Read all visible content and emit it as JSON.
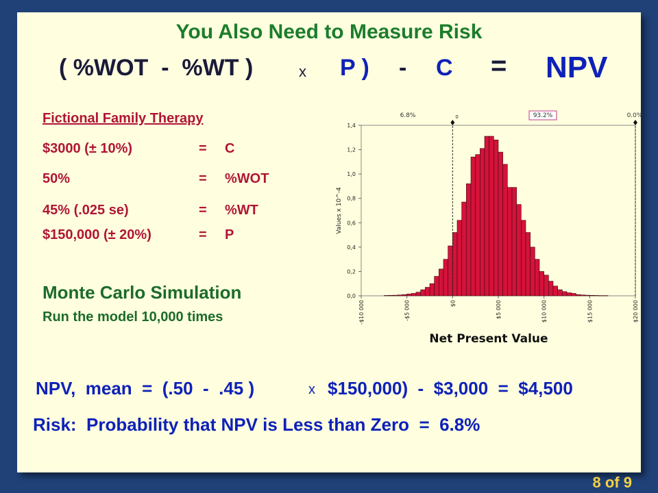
{
  "title": "You Also Need to Measure Risk",
  "formula": {
    "open": "( %WOT  -  %WT )",
    "times": "x",
    "p": "P )",
    "minus": "-",
    "c": "C",
    "equals": "=",
    "npv": "NPV"
  },
  "example": {
    "heading": "Fictional Family Therapy",
    "rows": [
      {
        "value": "$3000 (± 10%)",
        "eq": "=",
        "var": "C"
      },
      {
        "value": "50%",
        "eq": "=",
        "var": "%WOT"
      },
      {
        "value": "45% (.025 se)",
        "eq": "=",
        "var": "%WT"
      },
      {
        "value": "$150,000 (± 20%)",
        "eq": "=",
        "var": "P"
      }
    ]
  },
  "simulation": {
    "heading": "Monte Carlo Simulation",
    "sub": "Run the model 10,000 times"
  },
  "npv_mean": {
    "a": "NPV,  mean  =  (.50  -  .45 )",
    "x": "x",
    "b": "$150,000)  -  $3,000  =  $4,500"
  },
  "risk": "Risk:  Probability that NPV is Less than Zero  =  6.8%",
  "page": "8 of 9",
  "chart_data": {
    "type": "bar",
    "xlabel": "Net Present Value",
    "ylabel": "Values x 10^-4",
    "xlim": [
      -10000,
      20000
    ],
    "ylim": [
      0,
      1.4
    ],
    "x_ticks": [
      "-$10 000",
      "-$5 000",
      "$0",
      "$5 000",
      "$10 000",
      "$15 000",
      "$20 000"
    ],
    "y_ticks": [
      "0,0",
      "0,2",
      "0,4",
      "0,6",
      "0,8",
      "1,0",
      "1,2",
      "1,4"
    ],
    "bin_width": 500,
    "bin_starts": [
      -7500,
      -7000,
      -6500,
      -6000,
      -5500,
      -5000,
      -4500,
      -4000,
      -3500,
      -3000,
      -2500,
      -2000,
      -1500,
      -1000,
      -500,
      0,
      500,
      1000,
      1500,
      2000,
      2500,
      3000,
      3500,
      4000,
      4500,
      5000,
      5500,
      6000,
      6500,
      7000,
      7500,
      8000,
      8500,
      9000,
      9500,
      10000,
      10500,
      11000,
      11500,
      12000,
      12500,
      13000,
      13500,
      14000,
      14500,
      15000,
      15500,
      16000,
      16500
    ],
    "values": [
      0.003,
      0.004,
      0.005,
      0.007,
      0.01,
      0.015,
      0.02,
      0.03,
      0.05,
      0.07,
      0.1,
      0.16,
      0.22,
      0.3,
      0.41,
      0.52,
      0.62,
      0.77,
      0.92,
      1.14,
      1.16,
      1.21,
      1.31,
      1.31,
      1.28,
      1.18,
      1.08,
      0.89,
      0.89,
      0.75,
      0.62,
      0.52,
      0.4,
      0.3,
      0.2,
      0.17,
      0.12,
      0.08,
      0.05,
      0.035,
      0.025,
      0.02,
      0.01,
      0.007,
      0.005,
      0.004,
      0.003,
      0.002,
      0.002
    ],
    "markers": [
      {
        "x": 0,
        "label": "0"
      },
      {
        "x": 20000,
        "label": ""
      }
    ],
    "region_labels": [
      "6.8%",
      "93.2%",
      "0.0%"
    ],
    "colors": {
      "bar": "#d4123a",
      "bar_stroke": "#3a0a10"
    }
  }
}
